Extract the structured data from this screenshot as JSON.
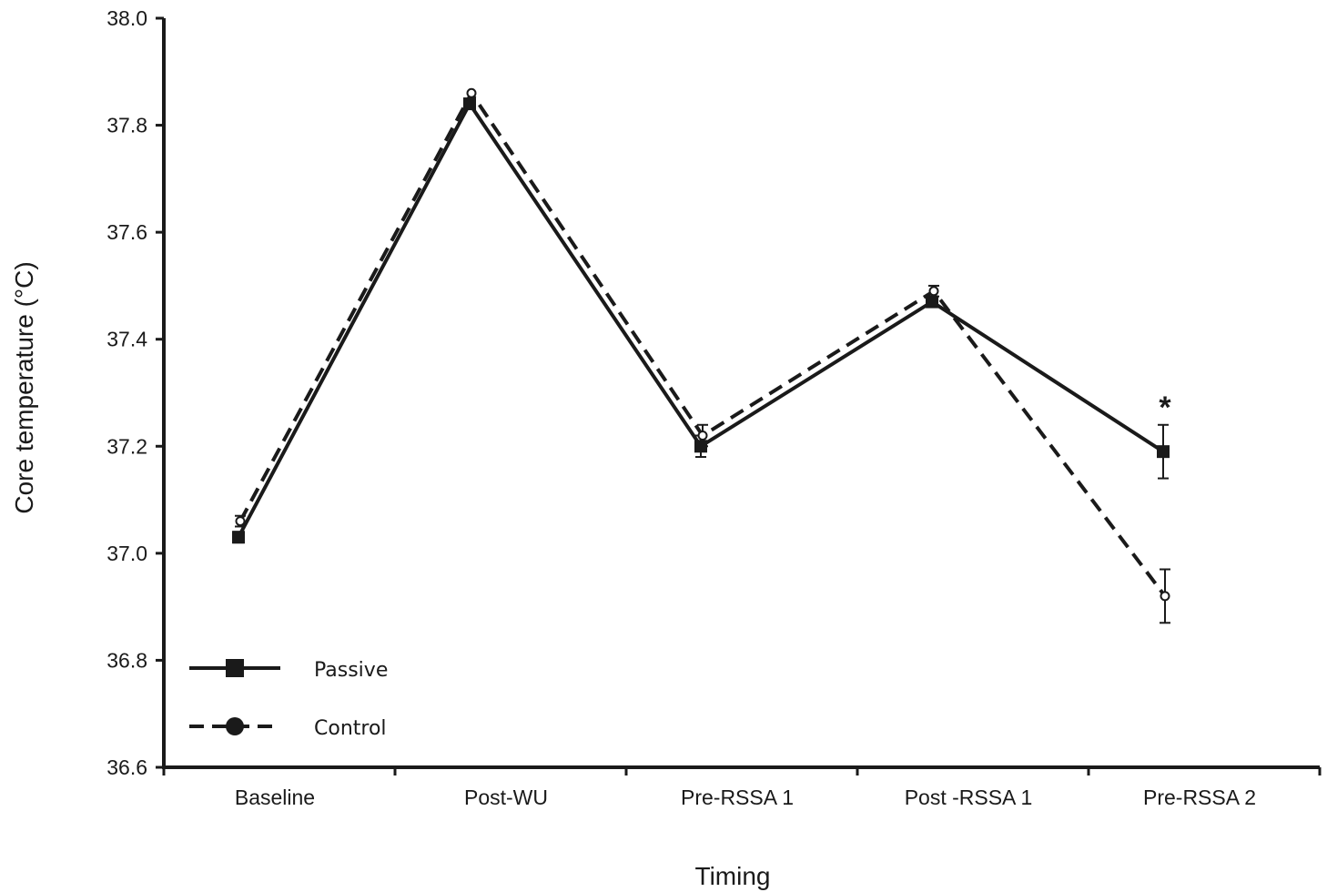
{
  "chart_data": {
    "type": "line",
    "xlabel": "Timing",
    "ylabel": "Core temperature (°C)",
    "ylim": [
      36.6,
      38.0
    ],
    "yticks": [
      "36.6",
      "36.8",
      "37.0",
      "37.2",
      "37.4",
      "37.6",
      "37.8",
      "38.0"
    ],
    "categories": [
      "Baseline",
      "Post-WU",
      "Pre-RSSA 1",
      "Post -RSSA 1",
      "Pre-RSSA 2"
    ],
    "series": [
      {
        "name": "Passive",
        "marker": "square",
        "line": "solid",
        "values": [
          37.03,
          37.84,
          37.2,
          37.47,
          37.19
        ],
        "error": [
          0.01,
          0.0,
          0.02,
          0.01,
          0.05
        ]
      },
      {
        "name": "Control",
        "marker": "circle",
        "line": "dashed",
        "values": [
          37.06,
          37.86,
          37.22,
          37.49,
          36.92
        ],
        "error": [
          0.01,
          0.0,
          0.02,
          0.01,
          0.05
        ]
      }
    ],
    "annotations": [
      {
        "text": "*",
        "category": "Pre-RSSA 2"
      }
    ],
    "legend_position": "bottom-left",
    "grid": false,
    "colors": {
      "line": "#1a1a1a",
      "background": "#ffffff"
    }
  }
}
